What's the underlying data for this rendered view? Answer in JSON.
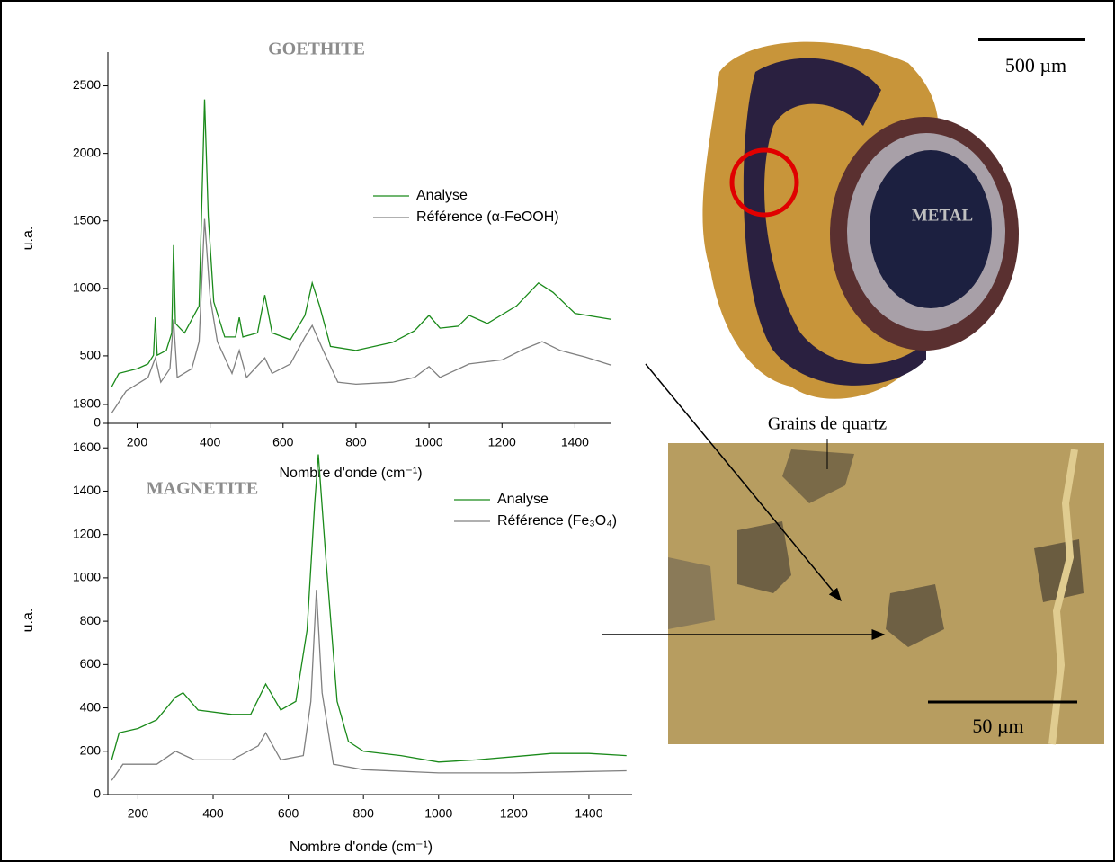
{
  "chart_data": [
    {
      "type": "line",
      "title": "GOETHITE",
      "x_label": "Nombre d'onde (cm⁻¹)",
      "y_label": "u.a.",
      "xlim": [
        120,
        1500
      ],
      "xticks": [
        200,
        400,
        600,
        800,
        1000,
        1200,
        1400
      ],
      "ylim": [
        0,
        2750
      ],
      "yticks": [
        0,
        500,
        1000,
        1500,
        2000,
        2500
      ],
      "legend": "upper right",
      "series": [
        {
          "name": "Analyse",
          "color": "#1a8a1a",
          "x": [
            130,
            150,
            200,
            230,
            245,
            250,
            255,
            280,
            295,
            300,
            305,
            330,
            370,
            385,
            395,
            410,
            440,
            470,
            480,
            490,
            530,
            550,
            570,
            620,
            660,
            680,
            700,
            730,
            800,
            900,
            960,
            1000,
            1030,
            1080,
            1110,
            1160,
            1240,
            1300,
            1340,
            1400,
            1500
          ],
          "values": [
            270,
            370,
            405,
            440,
            505,
            785,
            505,
            540,
            670,
            1320,
            740,
            670,
            870,
            2400,
            1535,
            900,
            640,
            640,
            785,
            640,
            670,
            950,
            670,
            620,
            800,
            1040,
            870,
            570,
            540,
            600,
            685,
            800,
            705,
            720,
            800,
            740,
            870,
            1040,
            970,
            815,
            770
          ]
        },
        {
          "name": "Référence (α-FeOOH)",
          "color": "#808080",
          "x": [
            130,
            170,
            230,
            250,
            265,
            290,
            300,
            310,
            350,
            370,
            385,
            400,
            420,
            460,
            480,
            500,
            550,
            570,
            620,
            660,
            680,
            710,
            750,
            800,
            900,
            960,
            1000,
            1030,
            1110,
            1200,
            1260,
            1310,
            1360,
            1430,
            1500
          ],
          "values": [
            75,
            240,
            340,
            485,
            305,
            405,
            770,
            340,
            405,
            605,
            1515,
            935,
            605,
            370,
            540,
            340,
            485,
            370,
            440,
            640,
            725,
            540,
            305,
            290,
            305,
            340,
            420,
            340,
            440,
            470,
            550,
            605,
            540,
            490,
            430
          ]
        }
      ]
    },
    {
      "type": "line",
      "title": "MAGNETITE",
      "x_label": "Nombre d'onde (cm⁻¹)",
      "y_label": "u.a.",
      "xlim": [
        120,
        1515
      ],
      "xticks": [
        200,
        400,
        600,
        800,
        1000,
        1200,
        1400
      ],
      "ylim": [
        0,
        1800
      ],
      "yticks": [
        0,
        200,
        400,
        600,
        800,
        1000,
        1200,
        1400,
        1600,
        1800
      ],
      "legend": "upper right",
      "series": [
        {
          "name": "Analyse",
          "color": "#1a8a1a",
          "x": [
            130,
            150,
            200,
            250,
            300,
            320,
            360,
            450,
            500,
            540,
            580,
            620,
            650,
            670,
            680,
            700,
            730,
            760,
            800,
            900,
            1000,
            1100,
            1200,
            1300,
            1400,
            1500
          ],
          "values": [
            160,
            285,
            305,
            345,
            450,
            470,
            390,
            370,
            370,
            510,
            390,
            430,
            760,
            1340,
            1570,
            1090,
            430,
            245,
            200,
            180,
            150,
            160,
            175,
            190,
            190,
            180
          ]
        },
        {
          "name": "Référence (Fe₃O₄)",
          "color": "#808080",
          "x": [
            130,
            160,
            250,
            300,
            350,
            450,
            520,
            540,
            580,
            640,
            660,
            675,
            690,
            720,
            800,
            1000,
            1200,
            1500
          ],
          "values": [
            65,
            140,
            140,
            200,
            160,
            160,
            225,
            285,
            160,
            180,
            430,
            945,
            470,
            140,
            115,
            100,
            100,
            110
          ]
        }
      ]
    }
  ],
  "photos": {
    "scale_top": "500 µm",
    "metal": "METAL",
    "quartz": "Grains de quartz",
    "scale_bottom": "50 µm"
  }
}
